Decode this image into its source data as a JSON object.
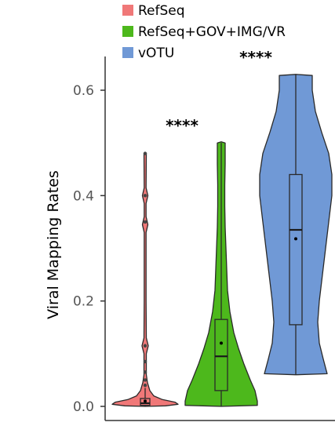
{
  "chart_data": {
    "type": "violin",
    "ylabel": "Viral Mapping Rates",
    "xlabel": "",
    "ylim": [
      0,
      0.63
    ],
    "yticks": [
      0.0,
      0.2,
      0.4,
      0.6
    ],
    "ytick_labels": [
      "0.0",
      "0.2",
      "0.4",
      "0.6"
    ],
    "legend_position": "top",
    "series": [
      {
        "name": "RefSeq",
        "color": "#F07878",
        "min": 0.0,
        "q1": 0.002,
        "median": 0.006,
        "q3": 0.015,
        "max": 0.035,
        "mean": 0.01,
        "outliers": [
          0.04,
          0.05,
          0.065,
          0.085,
          0.115,
          0.35,
          0.4,
          0.48
        ],
        "significance": ""
      },
      {
        "name": "RefSeq+GOV+IMG/VR",
        "color": "#4DB81C",
        "min": 0.0,
        "q1": 0.03,
        "median": 0.095,
        "q3": 0.165,
        "max": 0.5,
        "mean": 0.12,
        "outliers": [],
        "significance": "****"
      },
      {
        "name": "vOTU",
        "color": "#7099D6",
        "min": 0.06,
        "q1": 0.155,
        "median": 0.335,
        "q3": 0.44,
        "max": 0.63,
        "mean": 0.318,
        "outliers": [],
        "significance": "****"
      }
    ]
  }
}
